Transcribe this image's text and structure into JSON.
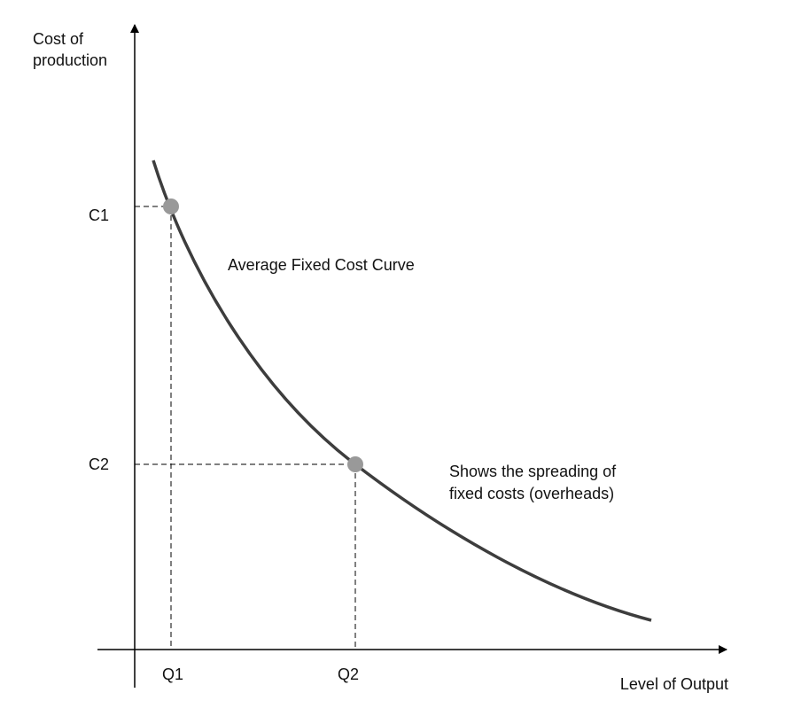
{
  "y_axis_label": [
    "Cost of",
    "production"
  ],
  "x_axis_label": "Level of Output",
  "y_labels": [
    "C1",
    "C2"
  ],
  "x_labels": [
    "Q1",
    "Q2"
  ],
  "curve_label": "Average Fixed Cost Curve",
  "note": [
    "Shows the spreading of",
    "fixed costs (overheads)"
  ]
}
